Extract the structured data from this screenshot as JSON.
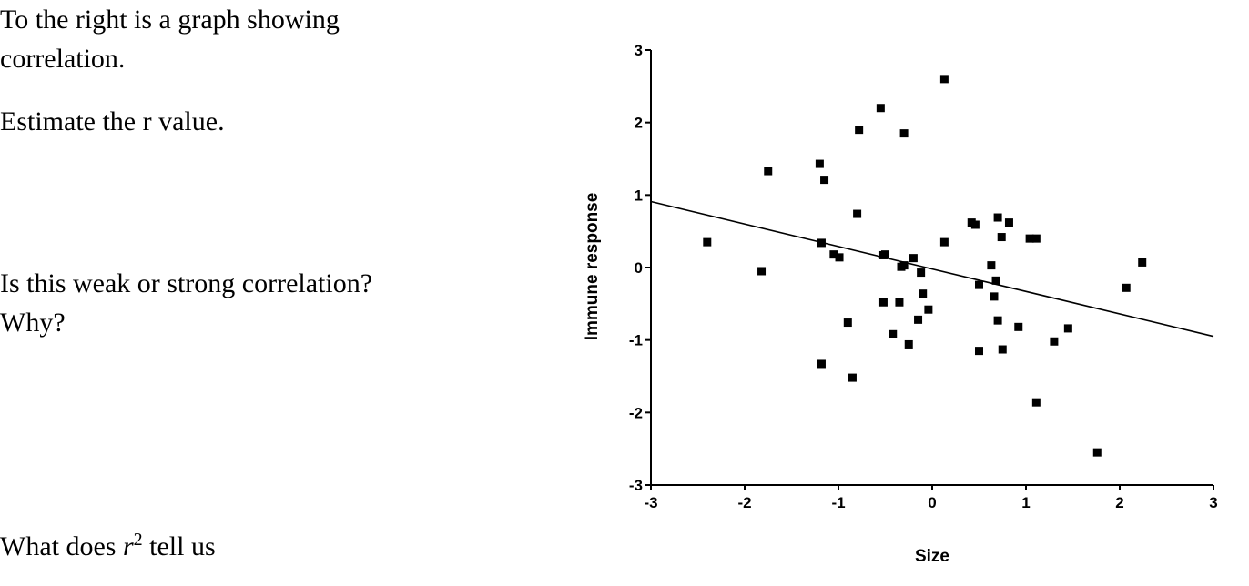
{
  "questions": {
    "q1_line1": " To the right is a graph showing",
    "q1_line2": "correlation.",
    "q2": "Estimate the r value.",
    "q3_line1": "Is this weak or strong correlation?",
    "q3_line2": "Why?",
    "q4_before": "What does ",
    "q4_var": "r",
    "q4_sup": "2",
    "q4_after": " tell us"
  },
  "chart_data": {
    "type": "scatter",
    "title": "",
    "xlabel": "Size",
    "ylabel": "Immune response",
    "xlim": [
      -3,
      3
    ],
    "ylim": [
      -3,
      3
    ],
    "xticks": [
      "-3",
      "-2",
      "-1",
      "0",
      "1",
      "2",
      "3"
    ],
    "yticks": [
      "3",
      "2",
      "1",
      "0",
      "-1",
      "-2",
      "-3"
    ],
    "grid": false,
    "marker_color": "#000000",
    "points": [
      [
        0.13,
        2.6
      ],
      [
        -0.55,
        2.2
      ],
      [
        -0.78,
        1.9
      ],
      [
        -0.3,
        1.85
      ],
      [
        -1.75,
        1.33
      ],
      [
        -1.2,
        1.43
      ],
      [
        -1.15,
        1.21
      ],
      [
        -0.8,
        0.74
      ],
      [
        -2.4,
        0.35
      ],
      [
        -1.82,
        -0.05
      ],
      [
        -1.18,
        0.34
      ],
      [
        -1.05,
        0.18
      ],
      [
        -0.99,
        0.14
      ],
      [
        -0.52,
        0.17
      ],
      [
        -0.5,
        0.18
      ],
      [
        -0.3,
        0.03
      ],
      [
        -0.33,
        0.01
      ],
      [
        -0.2,
        0.13
      ],
      [
        -0.12,
        -0.07
      ],
      [
        -0.1,
        -0.36
      ],
      [
        -0.04,
        -0.58
      ],
      [
        -0.15,
        -0.72
      ],
      [
        -0.25,
        -1.06
      ],
      [
        -0.42,
        -0.92
      ],
      [
        -0.35,
        -0.48
      ],
      [
        -0.52,
        -0.48
      ],
      [
        -0.9,
        -0.76
      ],
      [
        -0.85,
        -1.52
      ],
      [
        -1.18,
        -1.33
      ],
      [
        0.13,
        0.35
      ],
      [
        0.42,
        0.62
      ],
      [
        0.46,
        0.59
      ],
      [
        0.5,
        -0.24
      ],
      [
        0.63,
        0.03
      ],
      [
        0.66,
        -0.4
      ],
      [
        0.7,
        0.69
      ],
      [
        0.68,
        -0.18
      ],
      [
        0.7,
        -0.73
      ],
      [
        0.74,
        0.42
      ],
      [
        0.82,
        0.62
      ],
      [
        0.92,
        -0.82
      ],
      [
        1.04,
        0.4
      ],
      [
        1.11,
        0.4
      ],
      [
        0.5,
        -1.15
      ],
      [
        0.75,
        -1.13
      ],
      [
        1.3,
        -1.02
      ],
      [
        1.45,
        -0.84
      ],
      [
        1.11,
        -1.86
      ],
      [
        1.76,
        -2.55
      ],
      [
        2.07,
        -0.28
      ],
      [
        2.24,
        0.07
      ]
    ],
    "fit_line": {
      "slope": -0.31,
      "intercept": -0.02
    }
  }
}
